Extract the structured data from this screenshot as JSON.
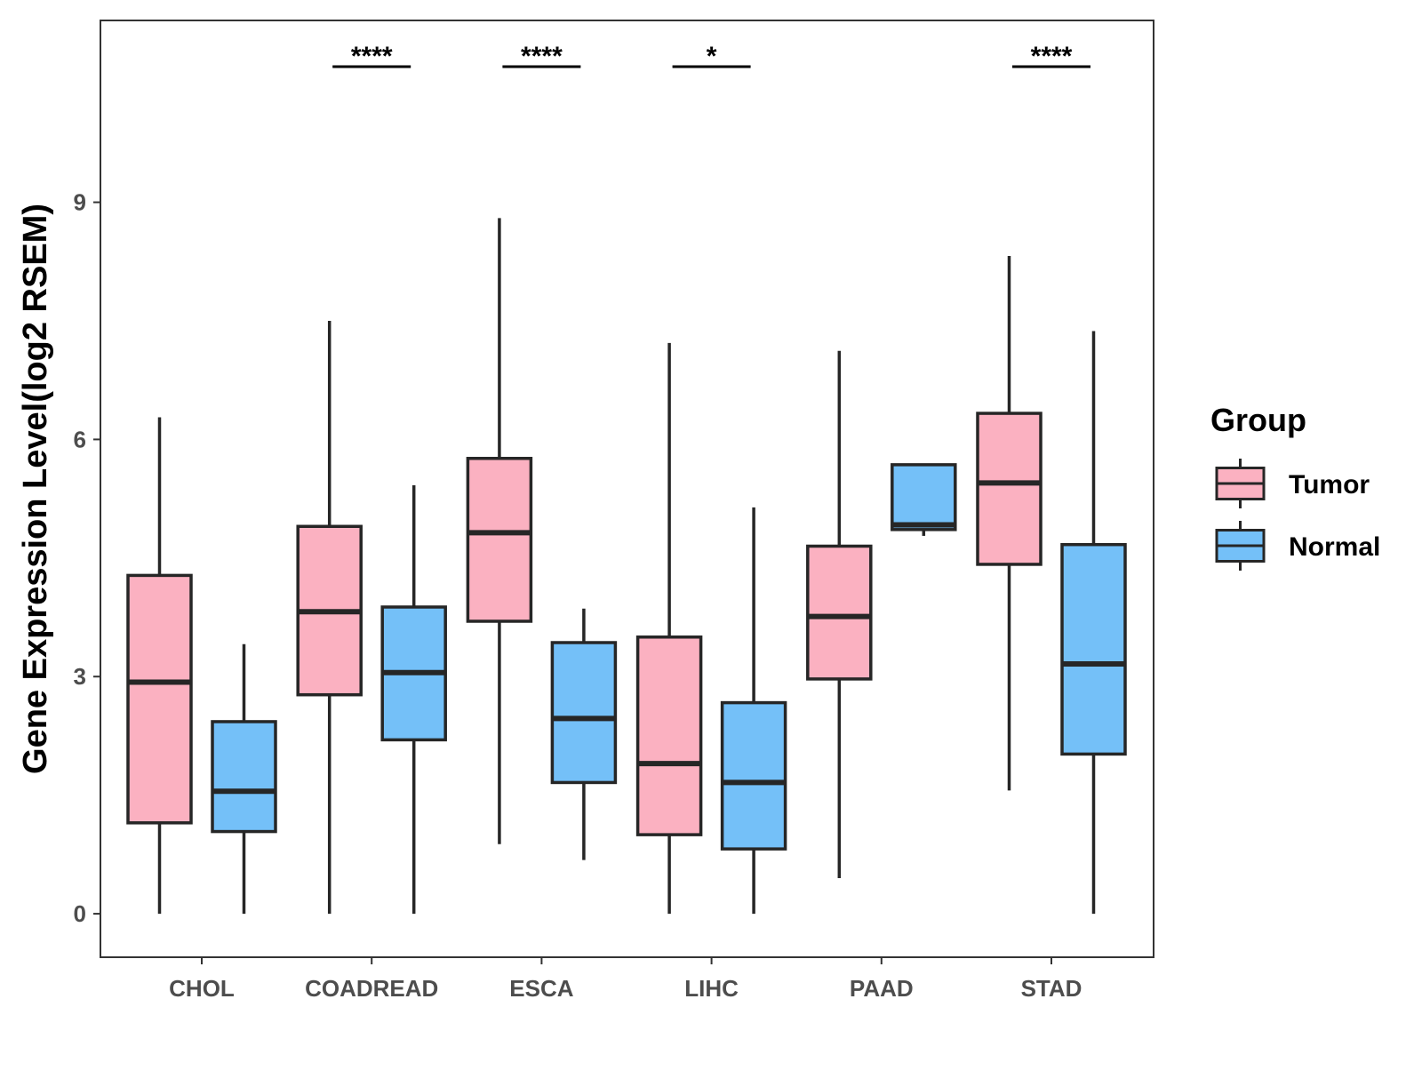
{
  "chart_data": {
    "type": "boxplot",
    "title": "",
    "xlabel": "",
    "ylabel": "Gene Expression Level(log2 RSEM)",
    "ylim": [
      -0.55,
      11.3
    ],
    "yticks": [
      0,
      3,
      6,
      9
    ],
    "grid": false,
    "categories": [
      "CHOL",
      "COADREAD",
      "ESCA",
      "LIHC",
      "PAAD",
      "STAD"
    ],
    "legend": {
      "title": "Group",
      "position": "right",
      "entries": [
        {
          "label": "Tumor",
          "color": "#FBB1C1"
        },
        {
          "label": "Normal",
          "color": "#74C0F8"
        }
      ]
    },
    "series": [
      {
        "name": "Tumor",
        "color": "#FBB1C1",
        "boxes": [
          {
            "category": "CHOL",
            "min": 0.0,
            "q1": 1.15,
            "median": 2.93,
            "q3": 4.28,
            "max": 6.28
          },
          {
            "category": "COADREAD",
            "min": 0.0,
            "q1": 2.77,
            "median": 3.82,
            "q3": 4.9,
            "max": 7.5
          },
          {
            "category": "ESCA",
            "min": 0.88,
            "q1": 3.7,
            "median": 4.82,
            "q3": 5.76,
            "max": 8.8
          },
          {
            "category": "LIHC",
            "min": 0.0,
            "q1": 1.0,
            "median": 1.9,
            "q3": 3.5,
            "max": 7.22
          },
          {
            "category": "PAAD",
            "min": 0.45,
            "q1": 2.97,
            "median": 3.76,
            "q3": 4.65,
            "max": 7.12
          },
          {
            "category": "STAD",
            "min": 1.56,
            "q1": 4.42,
            "median": 5.45,
            "q3": 6.33,
            "max": 8.32
          }
        ]
      },
      {
        "name": "Normal",
        "color": "#74C0F8",
        "boxes": [
          {
            "category": "CHOL",
            "min": 0.0,
            "q1": 1.04,
            "median": 1.55,
            "q3": 2.43,
            "max": 3.41
          },
          {
            "category": "COADREAD",
            "min": 0.0,
            "q1": 2.2,
            "median": 3.05,
            "q3": 3.88,
            "max": 5.42
          },
          {
            "category": "ESCA",
            "min": 0.68,
            "q1": 1.66,
            "median": 2.47,
            "q3": 3.43,
            "max": 3.86
          },
          {
            "category": "LIHC",
            "min": 0.0,
            "q1": 0.82,
            "median": 1.66,
            "q3": 2.67,
            "max": 5.14
          },
          {
            "category": "PAAD",
            "min": 4.78,
            "q1": 4.86,
            "median": 4.92,
            "q3": 5.68,
            "max": 5.68
          },
          {
            "category": "STAD",
            "min": 0.0,
            "q1": 2.02,
            "median": 3.16,
            "q3": 4.67,
            "max": 7.37
          }
        ]
      }
    ],
    "annotations": [
      {
        "category": "COADREAD",
        "label": "****"
      },
      {
        "category": "ESCA",
        "label": "****"
      },
      {
        "category": "LIHC",
        "label": "*"
      },
      {
        "category": "STAD",
        "label": "****"
      }
    ]
  }
}
